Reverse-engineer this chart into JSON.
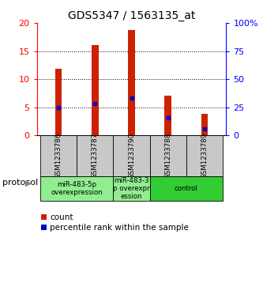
{
  "title": "GDS5347 / 1563135_at",
  "samples": [
    "GSM1233786",
    "GSM1233787",
    "GSM1233790",
    "GSM1233788",
    "GSM1233789"
  ],
  "counts": [
    11.8,
    16.1,
    18.7,
    7.1,
    3.8
  ],
  "percentiles_left_axis": [
    5.0,
    5.6,
    6.7,
    3.1,
    1.2
  ],
  "groups": [
    {
      "label": "miR-483-5p\noverexpression",
      "start": 0,
      "end": 1,
      "color": "#90EE90"
    },
    {
      "label": "miR-483-3\np overexpr\nession",
      "start": 2,
      "end": 2,
      "color": "#90EE90"
    },
    {
      "label": "control",
      "start": 3,
      "end": 4,
      "color": "#32CD32"
    }
  ],
  "ylim_left": [
    0,
    20
  ],
  "ylim_right": [
    0,
    100
  ],
  "yticks_left": [
    0,
    5,
    10,
    15,
    20
  ],
  "ytick_labels_left": [
    "0",
    "5",
    "10",
    "15",
    "20"
  ],
  "yticks_right": [
    0,
    25,
    50,
    75,
    100
  ],
  "ytick_labels_right": [
    "0",
    "25",
    "50",
    "75",
    "100%"
  ],
  "bar_color": "#CC2200",
  "dot_color": "#0000CC",
  "bg_color": "#FFFFFF",
  "sample_bg": "#C8C8C8",
  "title_fontsize": 10,
  "tick_fontsize": 8,
  "legend_fontsize": 7.5,
  "protocol_label": "protocol",
  "bar_width": 0.18
}
